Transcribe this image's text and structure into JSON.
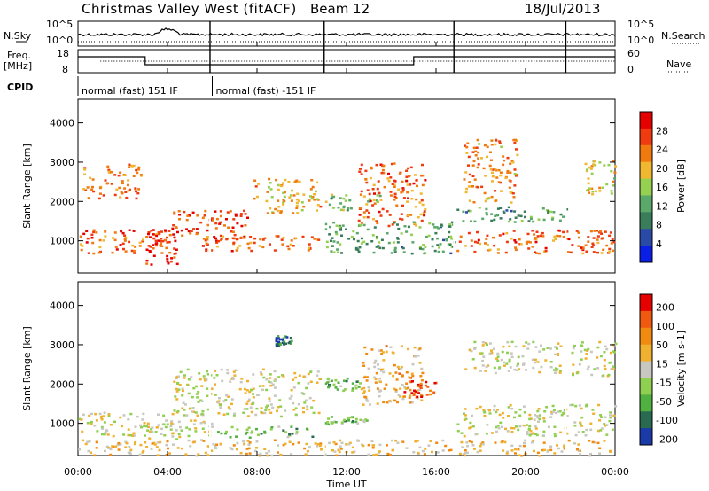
{
  "header": {
    "station": "Christmas Valley West (fitACF)",
    "beam": "Beam 12",
    "date": "18/Jul/2013"
  },
  "top_panel": {
    "nsky_label": "N.Sky",
    "nsearch_label": "N.Search",
    "left_ticks": [
      "10^5",
      "10^0"
    ],
    "right_ticks": [
      "10^5",
      "10^0"
    ]
  },
  "freq_panel": {
    "label_line1": "Freq.",
    "label_line2": "[MHz]",
    "left_ticks": [
      "18",
      "8"
    ],
    "right_ticks": [
      "60",
      "0"
    ],
    "nave_label": "Nave"
  },
  "cpid": {
    "label": "CPID",
    "modes": [
      {
        "text": "normal (fast) 151 IF",
        "start_h": 0,
        "end_h": 6
      },
      {
        "text": "normal (fast) -151 IF",
        "start_h": 6,
        "end_h": 24
      }
    ]
  },
  "colors": {
    "power": [
      "#0a1ee6",
      "#2a4aa8",
      "#3a7d5a",
      "#5aa86a",
      "#96d050",
      "#f0b830",
      "#f07a10",
      "#f03a10",
      "#e60000"
    ],
    "velocity": [
      "#e60000",
      "#f05a10",
      "#f08a10",
      "#f0b030",
      "#c8c8c0",
      "#90d050",
      "#50b040",
      "#2a6a50",
      "#1a3aa8"
    ]
  },
  "chart_data": {
    "type": "heatmap",
    "x_range_hours": [
      0,
      24
    ],
    "x_ticks": [
      "00:00",
      "04:00",
      "08:00",
      "12:00",
      "16:00",
      "20:00",
      "00:00"
    ],
    "xlabel": "Time UT",
    "y_range_km": [
      180,
      4600
    ],
    "y_ticks": [
      1000,
      2000,
      3000,
      4000
    ],
    "ylabel": "Slant Range [km]",
    "data_gaps_hours": [
      5.9,
      11.0,
      16.8,
      21.8
    ],
    "panels": [
      {
        "name": "Power",
        "colorbar_label": "Power [dB]",
        "colorbar_ticks": [
          "4",
          "8",
          "12",
          "16",
          "20",
          "24",
          "28"
        ],
        "colorbar_range": [
          0,
          30
        ],
        "features": [
          {
            "t0": 0.0,
            "t1": 4.2,
            "r0": 700,
            "r1": 1300,
            "level": 0.82
          },
          {
            "t0": 3.0,
            "t1": 4.4,
            "r0": 400,
            "r1": 1500,
            "level": 0.92
          },
          {
            "t0": 4.2,
            "t1": 7.8,
            "r0": 1000,
            "r1": 1800,
            "level": 0.88
          },
          {
            "t0": 7.8,
            "t1": 10.8,
            "r0": 1700,
            "r1": 2600,
            "level": 0.65
          },
          {
            "t0": 5.5,
            "t1": 10.8,
            "r0": 750,
            "r1": 1150,
            "level": 0.8
          },
          {
            "t0": 0.2,
            "t1": 2.8,
            "r0": 2100,
            "r1": 3000,
            "level": 0.75
          },
          {
            "t0": 11.0,
            "t1": 13.6,
            "r0": 1800,
            "r1": 2200,
            "level": 0.45
          },
          {
            "t0": 12.5,
            "t1": 15.5,
            "r0": 1400,
            "r1": 3000,
            "level": 0.8
          },
          {
            "t0": 11.0,
            "t1": 16.8,
            "r0": 700,
            "r1": 1500,
            "level": 0.35
          },
          {
            "t0": 16.9,
            "t1": 24.0,
            "r0": 700,
            "r1": 1300,
            "level": 0.78
          },
          {
            "t0": 17.2,
            "t1": 19.6,
            "r0": 2000,
            "r1": 3600,
            "level": 0.72
          },
          {
            "t0": 22.5,
            "t1": 24.0,
            "r0": 2200,
            "r1": 3100,
            "level": 0.6
          },
          {
            "t0": 16.9,
            "t1": 21.8,
            "r0": 1500,
            "r1": 1900,
            "level": 0.35
          }
        ]
      },
      {
        "name": "Velocity",
        "colorbar_label": "Velocity [m s-1]",
        "colorbar_ticks": [
          "200",
          "100",
          "50",
          "15",
          "-15",
          "-50",
          "-100",
          "-200"
        ],
        "colorbar_range": [
          -250,
          250
        ],
        "features": [
          {
            "t0": 0.0,
            "t1": 4.2,
            "r0": 700,
            "r1": 1300,
            "level": 0.5
          },
          {
            "t0": 4.2,
            "t1": 10.8,
            "r0": 1200,
            "r1": 2400,
            "level": 0.5
          },
          {
            "t0": 3.0,
            "t1": 6.0,
            "r0": 600,
            "r1": 1100,
            "level": 0.5
          },
          {
            "t0": 6.2,
            "t1": 10.5,
            "r0": 650,
            "r1": 950,
            "level": 0.3
          },
          {
            "t0": 11.0,
            "t1": 12.6,
            "r0": 1850,
            "r1": 2200,
            "level": 0.3
          },
          {
            "t0": 11.0,
            "t1": 13.0,
            "r0": 1000,
            "r1": 1200,
            "level": 0.3
          },
          {
            "t0": 12.6,
            "t1": 15.4,
            "r0": 1500,
            "r1": 3000,
            "level": 0.65
          },
          {
            "t0": 14.5,
            "t1": 16.0,
            "r0": 1700,
            "r1": 2100,
            "level": 0.9
          },
          {
            "t0": 16.9,
            "t1": 24.0,
            "r0": 700,
            "r1": 1500,
            "level": 0.5
          },
          {
            "t0": 17.2,
            "t1": 21.6,
            "r0": 2300,
            "r1": 3100,
            "level": 0.5
          },
          {
            "t0": 22.0,
            "t1": 24.0,
            "r0": 2200,
            "r1": 3100,
            "level": 0.5
          },
          {
            "t0": 8.8,
            "t1": 9.5,
            "r0": 3000,
            "r1": 3250,
            "level": 0.1
          },
          {
            "t0": 0.0,
            "t1": 24.0,
            "r0": 200,
            "r1": 600,
            "level": 0.62
          }
        ]
      }
    ]
  }
}
